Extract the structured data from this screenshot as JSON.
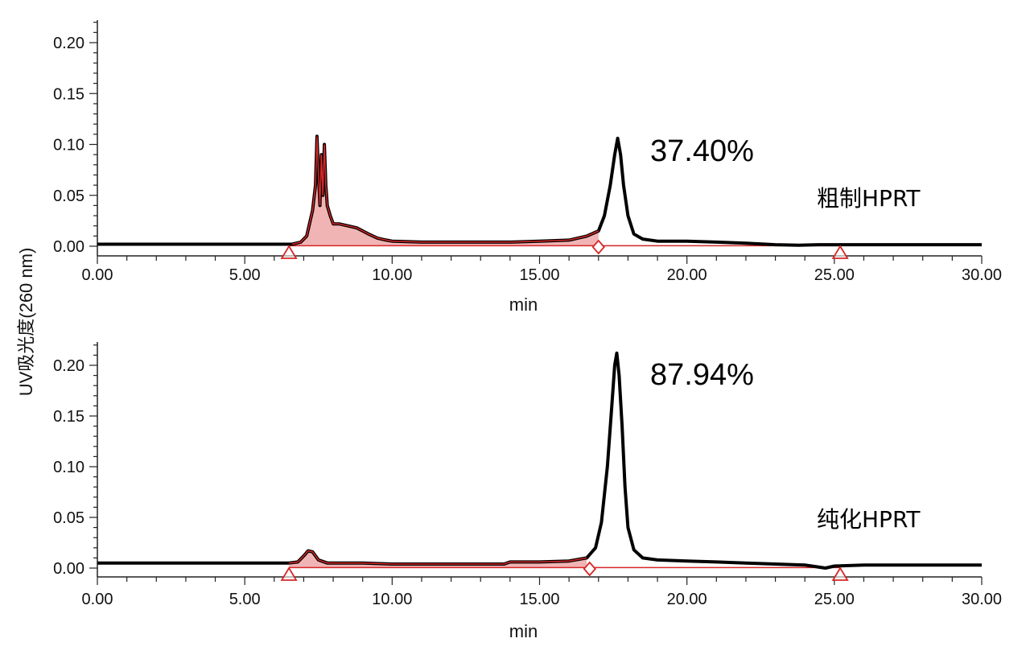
{
  "y_axis_label": "UV吸光度(260 nm)",
  "colors": {
    "trace": "#000000",
    "integration": "#d62728"
  },
  "chart_data": [
    {
      "type": "line",
      "xlabel": "min",
      "xlim": [
        0,
        30
      ],
      "ylim": [
        -0.008,
        0.22
      ],
      "x_ticks": [
        "0.00",
        "5.00",
        "10.00",
        "15.00",
        "20.00",
        "25.00",
        "30.00"
      ],
      "y_ticks": [
        "0.00",
        "0.05",
        "0.10",
        "0.15",
        "0.20"
      ],
      "annotation_percent": "37.40%",
      "sample_label": "粗制HPRT",
      "integration": {
        "start_triangle": 6.5,
        "split_diamond": 17.0,
        "end_triangle": 25.2
      },
      "trace": [
        [
          0,
          0.002
        ],
        [
          6.3,
          0.002
        ],
        [
          6.6,
          0.002
        ],
        [
          6.9,
          0.004
        ],
        [
          7.1,
          0.01
        ],
        [
          7.3,
          0.035
        ],
        [
          7.4,
          0.06
        ],
        [
          7.45,
          0.108
        ],
        [
          7.5,
          0.07
        ],
        [
          7.55,
          0.04
        ],
        [
          7.6,
          0.09
        ],
        [
          7.65,
          0.05
        ],
        [
          7.7,
          0.1
        ],
        [
          7.75,
          0.06
        ],
        [
          7.8,
          0.04
        ],
        [
          7.9,
          0.03
        ],
        [
          8.0,
          0.022
        ],
        [
          8.2,
          0.022
        ],
        [
          8.5,
          0.02
        ],
        [
          8.8,
          0.018
        ],
        [
          9.0,
          0.015
        ],
        [
          9.2,
          0.012
        ],
        [
          9.5,
          0.008
        ],
        [
          9.8,
          0.006
        ],
        [
          10.0,
          0.005
        ],
        [
          11.0,
          0.004
        ],
        [
          12.0,
          0.004
        ],
        [
          13.0,
          0.004
        ],
        [
          14.0,
          0.004
        ],
        [
          15.0,
          0.005
        ],
        [
          16.0,
          0.006
        ],
        [
          16.6,
          0.01
        ],
        [
          17.0,
          0.015
        ],
        [
          17.2,
          0.03
        ],
        [
          17.4,
          0.06
        ],
        [
          17.55,
          0.09
        ],
        [
          17.65,
          0.106
        ],
        [
          17.75,
          0.09
        ],
        [
          17.85,
          0.06
        ],
        [
          18.0,
          0.03
        ],
        [
          18.2,
          0.012
        ],
        [
          18.5,
          0.007
        ],
        [
          19.0,
          0.005
        ],
        [
          20.0,
          0.005
        ],
        [
          21.0,
          0.004
        ],
        [
          22.0,
          0.003
        ],
        [
          23.0,
          0.0015
        ],
        [
          23.8,
          0.001
        ],
        [
          24.5,
          0.0015
        ],
        [
          25.5,
          0.0015
        ],
        [
          30.0,
          0.0015
        ]
      ]
    },
    {
      "type": "line",
      "xlabel": "min",
      "xlim": [
        0,
        30
      ],
      "ylim": [
        -0.008,
        0.22
      ],
      "x_ticks": [
        "0.00",
        "5.00",
        "10.00",
        "15.00",
        "20.00",
        "25.00",
        "30.00"
      ],
      "y_ticks": [
        "0.00",
        "0.05",
        "0.10",
        "0.15",
        "0.20"
      ],
      "annotation_percent": "87.94%",
      "sample_label": "纯化HPRT",
      "integration": {
        "start_triangle": 6.5,
        "split_diamond": 16.7,
        "end_triangle": 25.2
      },
      "trace": [
        [
          0,
          0.005
        ],
        [
          6.5,
          0.005
        ],
        [
          6.8,
          0.006
        ],
        [
          7.0,
          0.012
        ],
        [
          7.15,
          0.017
        ],
        [
          7.3,
          0.016
        ],
        [
          7.5,
          0.008
        ],
        [
          7.8,
          0.005
        ],
        [
          8.5,
          0.005
        ],
        [
          9.0,
          0.005
        ],
        [
          10.0,
          0.004
        ],
        [
          12.0,
          0.004
        ],
        [
          13.8,
          0.004
        ],
        [
          14.0,
          0.006
        ],
        [
          15.0,
          0.006
        ],
        [
          16.0,
          0.007
        ],
        [
          16.6,
          0.01
        ],
        [
          16.9,
          0.02
        ],
        [
          17.1,
          0.045
        ],
        [
          17.3,
          0.1
        ],
        [
          17.45,
          0.16
        ],
        [
          17.55,
          0.2
        ],
        [
          17.62,
          0.212
        ],
        [
          17.7,
          0.19
        ],
        [
          17.8,
          0.14
        ],
        [
          17.9,
          0.08
        ],
        [
          18.0,
          0.04
        ],
        [
          18.2,
          0.018
        ],
        [
          18.5,
          0.01
        ],
        [
          19.0,
          0.008
        ],
        [
          20.0,
          0.007
        ],
        [
          21.0,
          0.006
        ],
        [
          22.0,
          0.005
        ],
        [
          23.0,
          0.004
        ],
        [
          24.0,
          0.003
        ],
        [
          24.7,
          0.0
        ],
        [
          25.0,
          0.002
        ],
        [
          26.0,
          0.003
        ],
        [
          30.0,
          0.003
        ]
      ]
    }
  ]
}
